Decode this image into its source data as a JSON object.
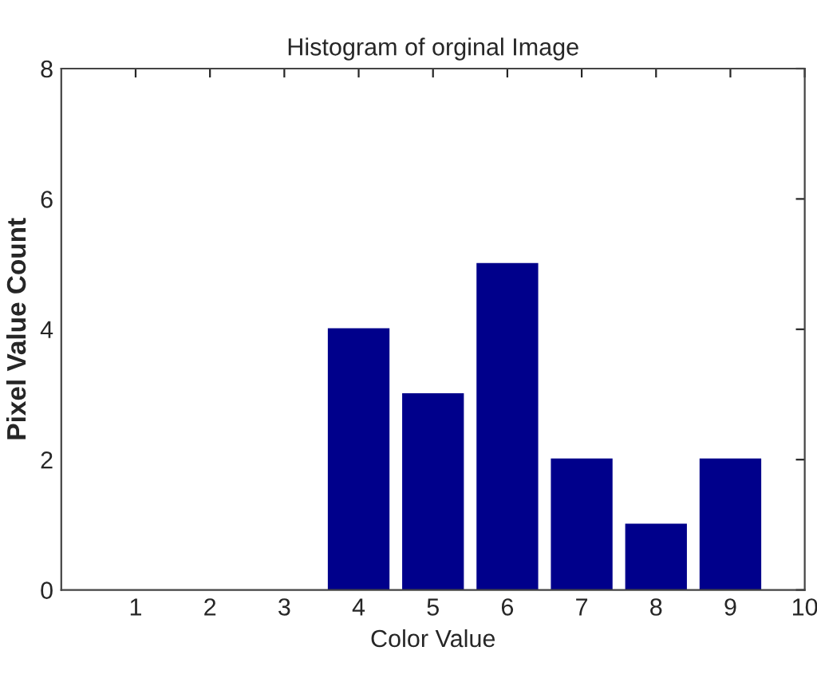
{
  "chart_data": {
    "type": "bar",
    "title": "Histogram of orginal Image",
    "xlabel": "Color Value",
    "ylabel": "Pixel Value Count",
    "x": [
      4,
      5,
      6,
      7,
      8,
      9
    ],
    "values": [
      4,
      3,
      5,
      2,
      1,
      2
    ],
    "color": "#00008b",
    "xlim": [
      0,
      10
    ],
    "xticks": [
      1,
      2,
      3,
      4,
      5,
      6,
      7,
      8,
      9,
      10
    ],
    "ylim": [
      0,
      8
    ],
    "yticks": [
      0,
      2,
      4,
      6,
      8
    ],
    "grid": false,
    "legend": false
  }
}
